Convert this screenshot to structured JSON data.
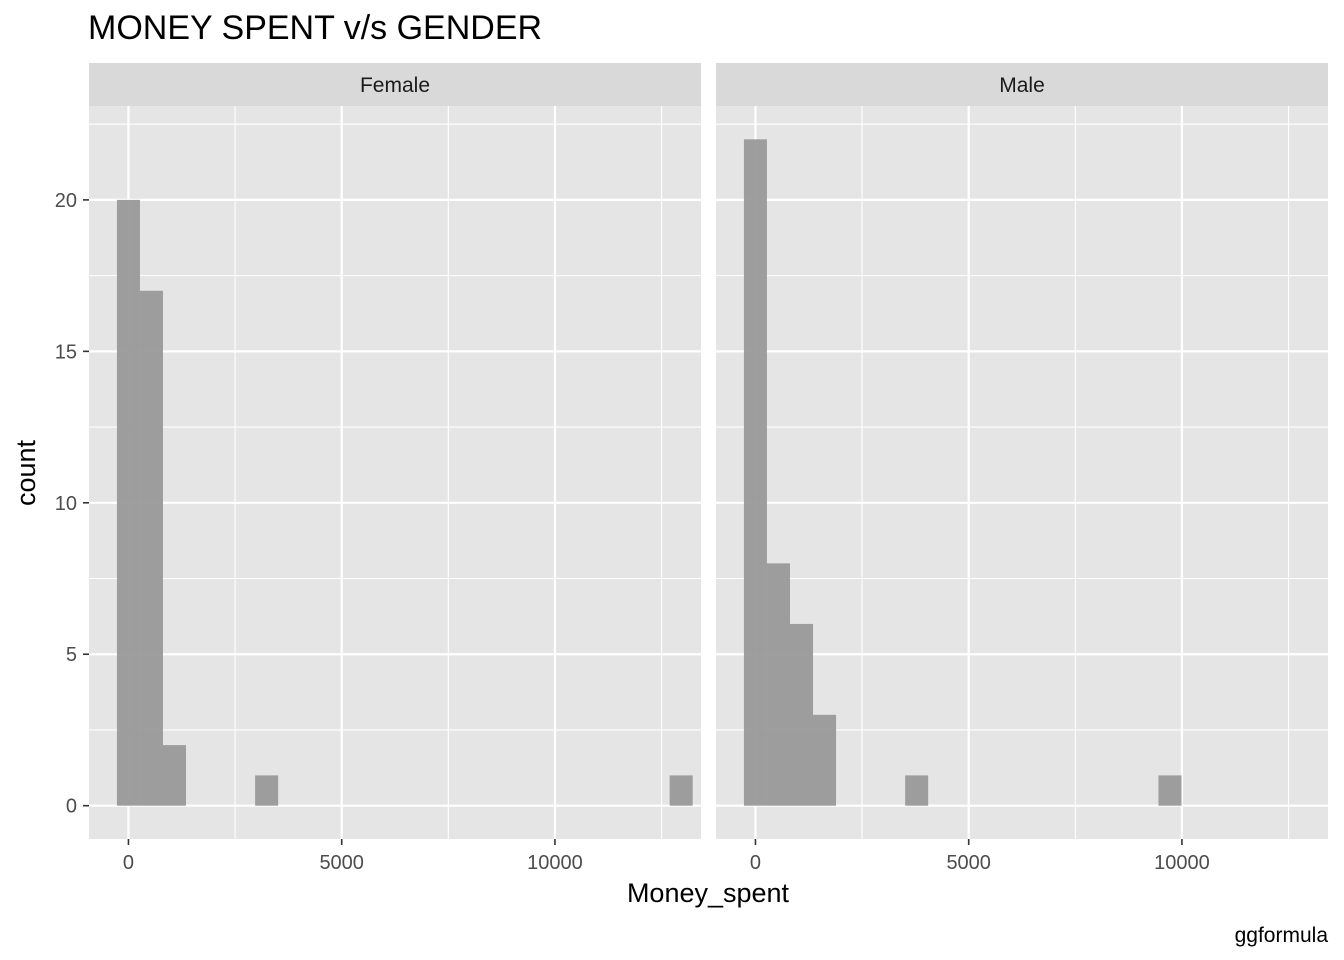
{
  "chart_data": {
    "type": "bar",
    "subtype": "faceted-histogram",
    "title": "MONEY SPENT v/s GENDER",
    "xlabel": "Money_spent",
    "ylabel": "count",
    "caption": "ggformula",
    "xlim": [
      -925,
      13425
    ],
    "ylim": [
      -1.1,
      23.1
    ],
    "x_ticks": [
      0,
      5000,
      10000
    ],
    "x_tick_labels": [
      "0",
      "5000",
      "10000"
    ],
    "y_ticks": [
      0,
      5,
      10,
      15,
      20
    ],
    "y_tick_labels": [
      "0",
      "5",
      "10",
      "15",
      "20"
    ],
    "bin_width": 540,
    "grid": true,
    "colors": {
      "bar": "#999999",
      "panel_background": "#e5e5e5",
      "grid": "#ffffff",
      "strip_background": "#d9d9d9"
    },
    "panels": [
      {
        "name": "Female",
        "bins": [
          {
            "x": 0,
            "count": 20
          },
          {
            "x": 540,
            "count": 17
          },
          {
            "x": 1080,
            "count": 2
          },
          {
            "x": 3240,
            "count": 1
          },
          {
            "x": 12960,
            "count": 1
          }
        ]
      },
      {
        "name": "Male",
        "bins": [
          {
            "x": 0,
            "count": 22
          },
          {
            "x": 540,
            "count": 8
          },
          {
            "x": 1080,
            "count": 6
          },
          {
            "x": 1620,
            "count": 3
          },
          {
            "x": 3780,
            "count": 1
          },
          {
            "x": 9720,
            "count": 1
          }
        ]
      }
    ]
  }
}
